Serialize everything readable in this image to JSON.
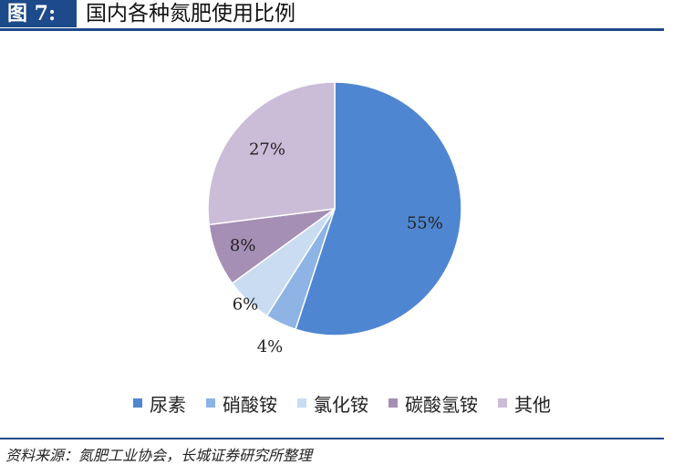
{
  "header": {
    "figure_label": "图 7:",
    "title": "国内各种氮肥使用比例"
  },
  "footer": {
    "source": "资料来源：氮肥工业协会，长城证券研究所整理"
  },
  "chart_data": {
    "type": "pie",
    "title": "国内各种氮肥使用比例",
    "categories": [
      "尿素",
      "硝酸铵",
      "氯化铵",
      "碳酸氢铵",
      "其他"
    ],
    "values": [
      55,
      4,
      6,
      8,
      27
    ],
    "labels": [
      "55%",
      "4%",
      "6%",
      "8%",
      "27%"
    ],
    "colors": [
      "#4f86d1",
      "#8eb3e5",
      "#c9dcf2",
      "#a58fb5",
      "#cbbcd8"
    ],
    "start_angle": "12 o'clock",
    "direction": "clockwise",
    "legend_position": "bottom"
  }
}
